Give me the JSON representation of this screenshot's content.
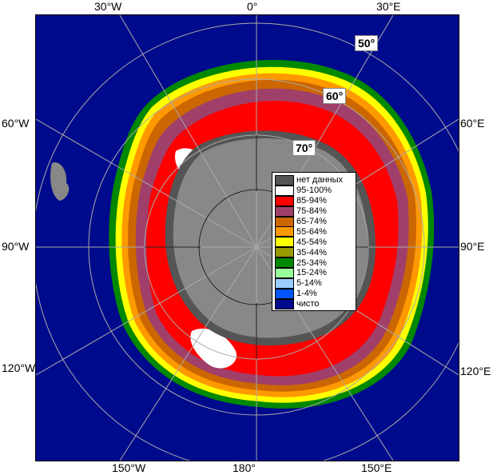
{
  "axis_labels": {
    "top": [
      "30°W",
      "0°",
      "30°E"
    ],
    "left": [
      "60°W",
      "90°W",
      "120°W"
    ],
    "right": [
      "60°E",
      "90°E",
      "120°E"
    ],
    "bottom": [
      "150°W",
      "180°",
      "150°E"
    ]
  },
  "latitude_labels": [
    "50°",
    "60°",
    "70°"
  ],
  "legend": [
    {
      "label": "нет данных",
      "color": "#555555"
    },
    {
      "label": "95-100%",
      "color": "#ffffff"
    },
    {
      "label": "85-94%",
      "color": "#ff0000"
    },
    {
      "label": "75-84%",
      "color": "#a0406a"
    },
    {
      "label": "65-74%",
      "color": "#cc6600"
    },
    {
      "label": "55-64%",
      "color": "#ff9900"
    },
    {
      "label": "45-54%",
      "color": "#ffff00"
    },
    {
      "label": "35-44%",
      "color": "#999900"
    },
    {
      "label": "25-34%",
      "color": "#008800"
    },
    {
      "label": "15-24%",
      "color": "#99ff99"
    },
    {
      "label": "5-14%",
      "color": "#99ccff"
    },
    {
      "label": "1-4%",
      "color": "#0055ff"
    },
    {
      "label": "чисто",
      "color": "#000a8c"
    }
  ],
  "colors": {
    "ocean": "#000a8c",
    "land": "#888888",
    "grid": "#aaaaaa"
  }
}
